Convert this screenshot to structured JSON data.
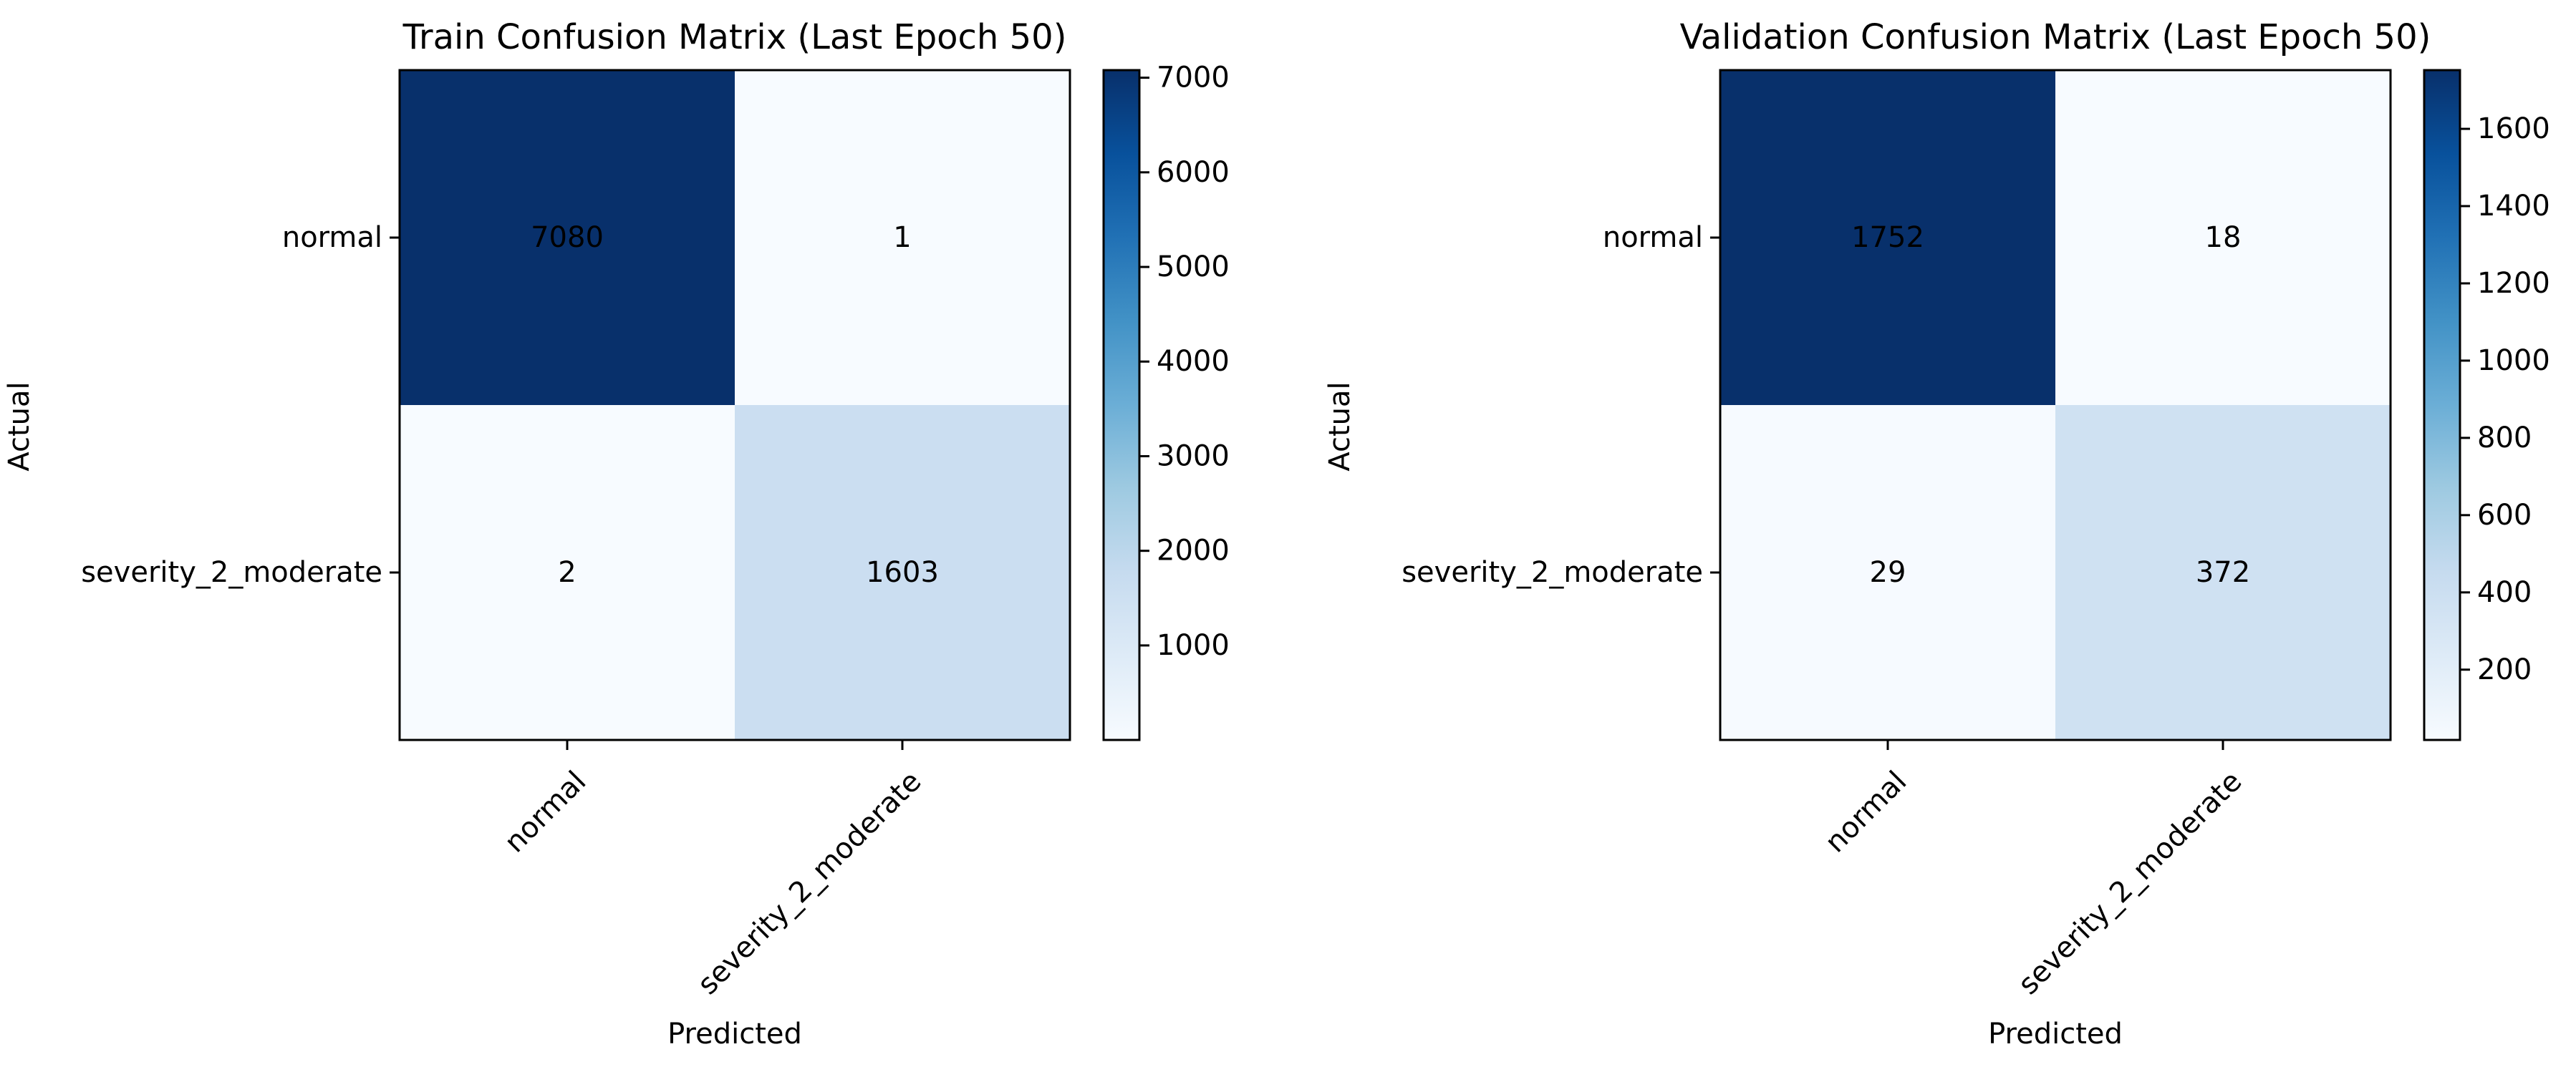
{
  "chart_data": [
    {
      "type": "heatmap",
      "title": "Train Confusion Matrix (Last Epoch 50)",
      "xlabel": "Predicted",
      "ylabel": "Actual",
      "x_categories": [
        "normal",
        "severity_2_moderate"
      ],
      "y_categories": [
        "normal",
        "severity_2_moderate"
      ],
      "values": [
        [
          7080,
          1
        ],
        [
          2,
          1603
        ]
      ],
      "colormap": "Blues",
      "colorbar": {
        "min": 1,
        "max": 7080,
        "ticks": [
          1000,
          2000,
          3000,
          4000,
          5000,
          6000,
          7000
        ]
      }
    },
    {
      "type": "heatmap",
      "title": "Validation Confusion Matrix (Last Epoch 50)",
      "xlabel": "Predicted",
      "ylabel": "Actual",
      "x_categories": [
        "normal",
        "severity_2_moderate"
      ],
      "y_categories": [
        "normal",
        "severity_2_moderate"
      ],
      "values": [
        [
          1752,
          18
        ],
        [
          29,
          372
        ]
      ],
      "colormap": "Blues",
      "colorbar": {
        "min": 18,
        "max": 1752,
        "ticks": [
          200,
          400,
          600,
          800,
          1000,
          1200,
          1400,
          1600
        ]
      }
    }
  ]
}
